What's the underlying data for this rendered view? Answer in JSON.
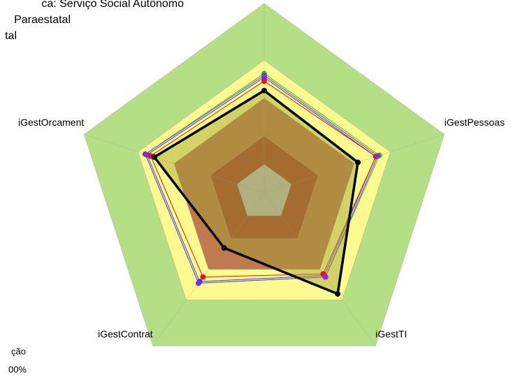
{
  "chart_data": {
    "type": "radar",
    "legend_text": [
      "ca: Serviço Social Autônomo",
      "Paraestatal",
      "tal"
    ],
    "footer_text": [
      "ção",
      "00%"
    ],
    "categories": [
      null,
      "iGestPessoas",
      "iGestTI",
      "iGestContrat",
      "iGestOrcament"
    ],
    "rlim": [
      0,
      100
    ],
    "bands": [
      {
        "value": 100,
        "color": "#b5df85"
      },
      {
        "value": 70,
        "color": "#fdfb8f"
      },
      {
        "value": 50,
        "color": "#c07a4e"
      },
      {
        "value": 30,
        "color": "#a9432d"
      },
      {
        "value": 15,
        "color": "#c0c0c0"
      }
    ],
    "series": [
      {
        "color": "#2244ff",
        "values": [
          61,
          62,
          54,
          58,
          65
        ]
      },
      {
        "color": "#22cc22",
        "values": [
          63,
          64,
          55,
          59,
          66
        ]
      },
      {
        "color": "#ee1111",
        "values": [
          59,
          62,
          53,
          55,
          63
        ]
      },
      {
        "color": "#8a2be2",
        "values": [
          62,
          63,
          55,
          59,
          66
        ]
      },
      {
        "color": "#000000",
        "values": [
          54,
          52,
          66,
          36,
          61
        ]
      }
    ]
  }
}
